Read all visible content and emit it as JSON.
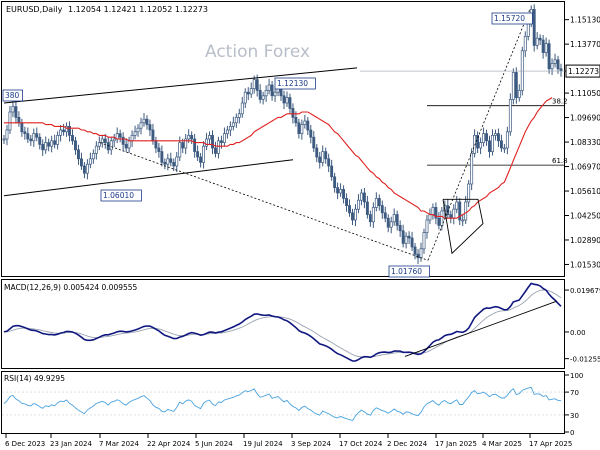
{
  "chart_data": {
    "type": "candlestick",
    "symbol_label": "EURUSD,Daily",
    "ohlc_label": "1.12054 1.12421 1.12052 1.12273",
    "watermark": "Action Forex",
    "colors": {
      "background": "#ffffff",
      "border": "#000000",
      "candle": "#3d5a80",
      "ma": "#e02020",
      "macd": "#101880",
      "signal": "#9aa4b0",
      "rsi": "#4aa3df",
      "trend": "#000000"
    },
    "x_ticks": [
      "6 Dec 2023",
      "23 Jan 2024",
      "7 Mar 2024",
      "22 Apr 2024",
      "5 Jun 2024",
      "19 Jul 2024",
      "3 Sep 2024",
      "17 Oct 2024",
      "2 Dec 2024",
      "17 Jan 2025",
      "4 Mar 2025",
      "17 Apr 2025"
    ],
    "price_axis": {
      "ticks": [
        "1.15130",
        "1.13770",
        "1.12273",
        "1.11050",
        "1.09690",
        "1.08330",
        "1.06970",
        "1.05610",
        "1.04250",
        "1.02890",
        "1.01530"
      ],
      "current": "1.12273",
      "ylim": [
        1.01,
        1.16
      ]
    },
    "price_labels": {
      "high": "1.15720",
      "left": "380",
      "mid_high": "1.12130",
      "mid_low": "1.06010",
      "low": "1.01760"
    },
    "fib_labels": {
      "f382": "38.2",
      "f618": "61.8"
    },
    "close_series": [
      1.085,
      1.09,
      1.1,
      1.103,
      1.097,
      1.094,
      1.089,
      1.088,
      1.085,
      1.084,
      1.088,
      1.086,
      1.082,
      1.079,
      1.083,
      1.081,
      1.084,
      1.082,
      1.087,
      1.09,
      1.089,
      1.092,
      1.087,
      1.084,
      1.079,
      1.074,
      1.07,
      1.066,
      1.071,
      1.074,
      1.077,
      1.081,
      1.083,
      1.085,
      1.083,
      1.079,
      1.084,
      1.085,
      1.088,
      1.086,
      1.082,
      1.08,
      1.084,
      1.087,
      1.089,
      1.091,
      1.094,
      1.096,
      1.093,
      1.09,
      1.084,
      1.08,
      1.078,
      1.072,
      1.071,
      1.074,
      1.072,
      1.07,
      1.075,
      1.083,
      1.08,
      1.085,
      1.087,
      1.085,
      1.078,
      1.075,
      1.072,
      1.081,
      1.085,
      1.087,
      1.08,
      1.077,
      1.084,
      1.083,
      1.088,
      1.09,
      1.092,
      1.094,
      1.097,
      1.099,
      1.105,
      1.111,
      1.11,
      1.113,
      1.118,
      1.112,
      1.107,
      1.109,
      1.112,
      1.115,
      1.109,
      1.111,
      1.113,
      1.109,
      1.105,
      1.108,
      1.102,
      1.097,
      1.094,
      1.088,
      1.093,
      1.095,
      1.09,
      1.086,
      1.08,
      1.075,
      1.072,
      1.078,
      1.074,
      1.07,
      1.064,
      1.058,
      1.055,
      1.057,
      1.052,
      1.048,
      1.044,
      1.04,
      1.046,
      1.051,
      1.055,
      1.05,
      1.043,
      1.039,
      1.047,
      1.052,
      1.048,
      1.044,
      1.041,
      1.036,
      1.039,
      1.043,
      1.037,
      1.034,
      1.027,
      1.031,
      1.03,
      1.025,
      1.021,
      1.019,
      1.024,
      1.033,
      1.04,
      1.043,
      1.047,
      1.041,
      1.037,
      1.045,
      1.048,
      1.043,
      1.041,
      1.046,
      1.05,
      1.04,
      1.04,
      1.05,
      1.06,
      1.077,
      1.087,
      1.08,
      1.083,
      1.088,
      1.084,
      1.078,
      1.087,
      1.088,
      1.084,
      1.08,
      1.08,
      1.089,
      1.107,
      1.122,
      1.108,
      1.112,
      1.134,
      1.142,
      1.15,
      1.157,
      1.137,
      1.141,
      1.14,
      1.133,
      1.138,
      1.124,
      1.127,
      1.129,
      1.124,
      1.123
    ],
    "ma_series": [
      1.094,
      1.094,
      1.094,
      1.094,
      1.094,
      1.094,
      1.094,
      1.094,
      1.094,
      1.094,
      1.094,
      1.094,
      1.094,
      1.094,
      1.093,
      1.093,
      1.093,
      1.092,
      1.092,
      1.092,
      1.092,
      1.091,
      1.091,
      1.091,
      1.091,
      1.091,
      1.09,
      1.09,
      1.089,
      1.089,
      1.088,
      1.088,
      1.087,
      1.087,
      1.087,
      1.086,
      1.086,
      1.086,
      1.085,
      1.085,
      1.085,
      1.085,
      1.084,
      1.084,
      1.084,
      1.084,
      1.084,
      1.084,
      1.084,
      1.084,
      1.084,
      1.084,
      1.084,
      1.084,
      1.084,
      1.084,
      1.084,
      1.084,
      1.084,
      1.084,
      1.084,
      1.084,
      1.084,
      1.084,
      1.083,
      1.083,
      1.083,
      1.083,
      1.082,
      1.082,
      1.082,
      1.081,
      1.081,
      1.081,
      1.081,
      1.081,
      1.082,
      1.082,
      1.083,
      1.083,
      1.084,
      1.085,
      1.086,
      1.087,
      1.089,
      1.09,
      1.091,
      1.092,
      1.093,
      1.094,
      1.095,
      1.096,
      1.097,
      1.097,
      1.098,
      1.099,
      1.099,
      1.099,
      1.099,
      1.099,
      1.1,
      1.1,
      1.1,
      1.099,
      1.098,
      1.097,
      1.096,
      1.095,
      1.094,
      1.093,
      1.091,
      1.089,
      1.088,
      1.086,
      1.084,
      1.082,
      1.08,
      1.078,
      1.076,
      1.075,
      1.073,
      1.071,
      1.069,
      1.067,
      1.066,
      1.064,
      1.063,
      1.061,
      1.06,
      1.058,
      1.057,
      1.055,
      1.054,
      1.053,
      1.052,
      1.051,
      1.05,
      1.049,
      1.048,
      1.047,
      1.045,
      1.045,
      1.044,
      1.043,
      1.043,
      1.042,
      1.042,
      1.042,
      1.041,
      1.041,
      1.041,
      1.041,
      1.041,
      1.042,
      1.043,
      1.044,
      1.045,
      1.047,
      1.048,
      1.05,
      1.051,
      1.052,
      1.053,
      1.055,
      1.056,
      1.057,
      1.058,
      1.06,
      1.061,
      1.065,
      1.069,
      1.073,
      1.077,
      1.081,
      1.085,
      1.089,
      1.092,
      1.095,
      1.097,
      1.1,
      1.102,
      1.104,
      1.106,
      1.107,
      1.108
    ],
    "indicators": {
      "macd": {
        "label": "MACD(12,26,9) 0.005424 0.009555",
        "ticks": [
          "0.019679",
          "0.00",
          "-0.012552"
        ],
        "ylim": [
          -0.016,
          0.023
        ]
      },
      "rsi": {
        "label": "RSI(14) 49.9295",
        "ticks": [
          "100",
          "70",
          "30",
          "0"
        ],
        "ylim": [
          0,
          100
        ]
      }
    }
  }
}
